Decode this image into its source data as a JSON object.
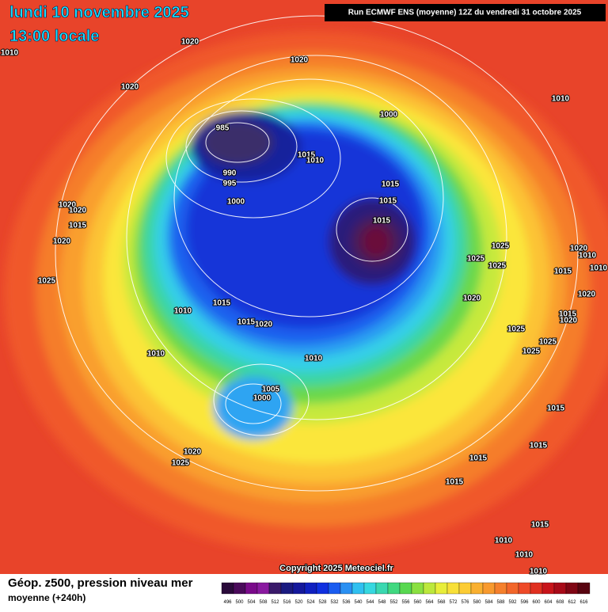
{
  "header": {
    "date": "lundi 10 novembre 2025",
    "time": "13:00 locale",
    "run": "Run ECMWF ENS (moyenne) 12Z du vendredi 31 octobre 2025"
  },
  "map": {
    "isobar_labels": [
      "1010",
      "1020",
      "1020",
      "1020",
      "1010",
      "1000",
      "985",
      "1015",
      "1010",
      "990",
      "995",
      "1015",
      "1000",
      "1020",
      "1020",
      "1015",
      "1015",
      "1015",
      "1020",
      "1025",
      "1025",
      "1025",
      "1020",
      "1010",
      "1015",
      "1010",
      "1025",
      "1020",
      "1020",
      "1015",
      "1010",
      "1015",
      "1020",
      "1015",
      "1020",
      "1025",
      "1025",
      "1025",
      "1010",
      "1010",
      "1005",
      "1000",
      "1015",
      "1015",
      "1020",
      "1025",
      "1015",
      "1015",
      "1015",
      "1010",
      "1010",
      "1010"
    ],
    "copyright": "Copyright 2025 Meteociel.fr"
  },
  "footer": {
    "title": "Géop. z500, pression niveau mer",
    "subtitle": "moyenne  (+240h)",
    "colorbar_ticks": [
      496,
      500,
      504,
      508,
      512,
      516,
      520,
      524,
      528,
      532,
      536,
      540,
      544,
      548,
      552,
      556,
      560,
      564,
      568,
      572,
      576,
      580,
      584,
      588,
      592,
      596,
      600,
      604,
      608,
      612,
      616
    ]
  }
}
